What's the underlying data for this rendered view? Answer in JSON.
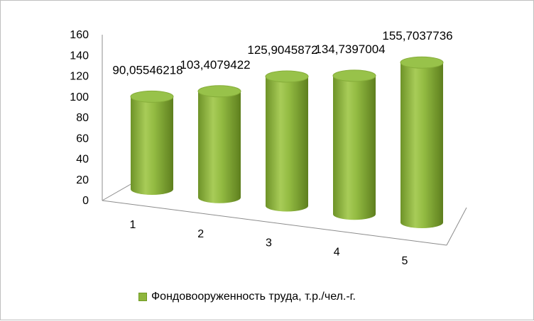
{
  "chart_data": {
    "type": "bar",
    "style": "3d-cylinder",
    "categories": [
      "1",
      "2",
      "3",
      "4",
      "5"
    ],
    "series": [
      {
        "name": "Фондовооруженность труда, т.р./чел.-г.",
        "values": [
          90.05546218,
          103.4079422,
          125.9045872,
          134.7397004,
          155.7037736
        ],
        "labels": [
          "90,05546218",
          "103,4079422",
          "125,9045872",
          "134,7397004",
          "155,7037736"
        ]
      }
    ],
    "yticks": [
      "0",
      "20",
      "40",
      "60",
      "80",
      "100",
      "120",
      "140",
      "160"
    ],
    "ylim": [
      0,
      160
    ],
    "grid": false,
    "legend_position": "bottom",
    "colors": {
      "bar": "#8fb63d",
      "bar_dark": "#5c7f1c",
      "bar_light": "#c6e07f",
      "top": "#a6cb55"
    }
  }
}
